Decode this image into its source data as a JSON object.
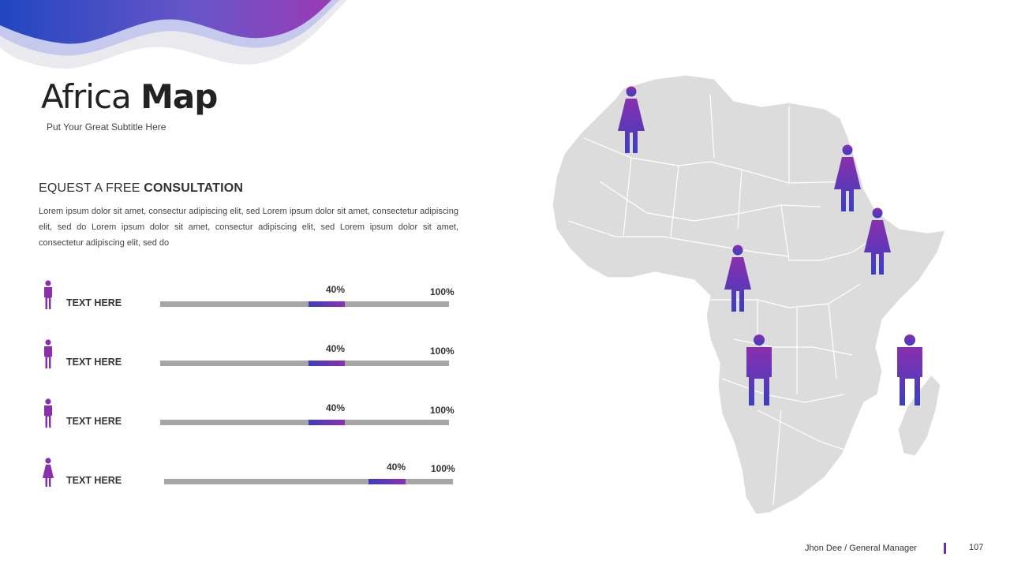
{
  "slide": {
    "title_light": "Africa ",
    "title_bold": "Map",
    "subtitle": "Put Your Great Subtitle Here",
    "consult_light": "EQUEST A FREE ",
    "consult_bold": "CONSULTATION",
    "body": "Lorem ipsum dolor sit amet, consectur adipiscing elit, sed Lorem ipsum dolor sit amet, consectetur adipiscing elit, sed do Lorem ipsum dolor sit amet, consectur adipiscing elit, sed Lorem ipsum dolor sit amet, consectetur adipiscing elit, sed do"
  },
  "bars": [
    {
      "label": "TEXT HERE",
      "percent_label": "40%",
      "max_label": "100%",
      "icon": "man-icon"
    },
    {
      "label": "TEXT HERE",
      "percent_label": "40%",
      "max_label": "100%",
      "icon": "man-icon"
    },
    {
      "label": "TEXT HERE",
      "percent_label": "40%",
      "max_label": "100%",
      "icon": "man-icon"
    },
    {
      "label": "TEXT HERE",
      "percent_label": "40%",
      "max_label": "100%",
      "icon": "woman-icon"
    }
  ],
  "footer": {
    "name": "Jhon Dee  / General  Manager",
    "page": "107"
  },
  "colors": {
    "accent_blue": "#2b45c8",
    "accent_purple": "#8e2fb0",
    "map_fill": "#dcdcdc",
    "track": "#a6a6a6"
  }
}
